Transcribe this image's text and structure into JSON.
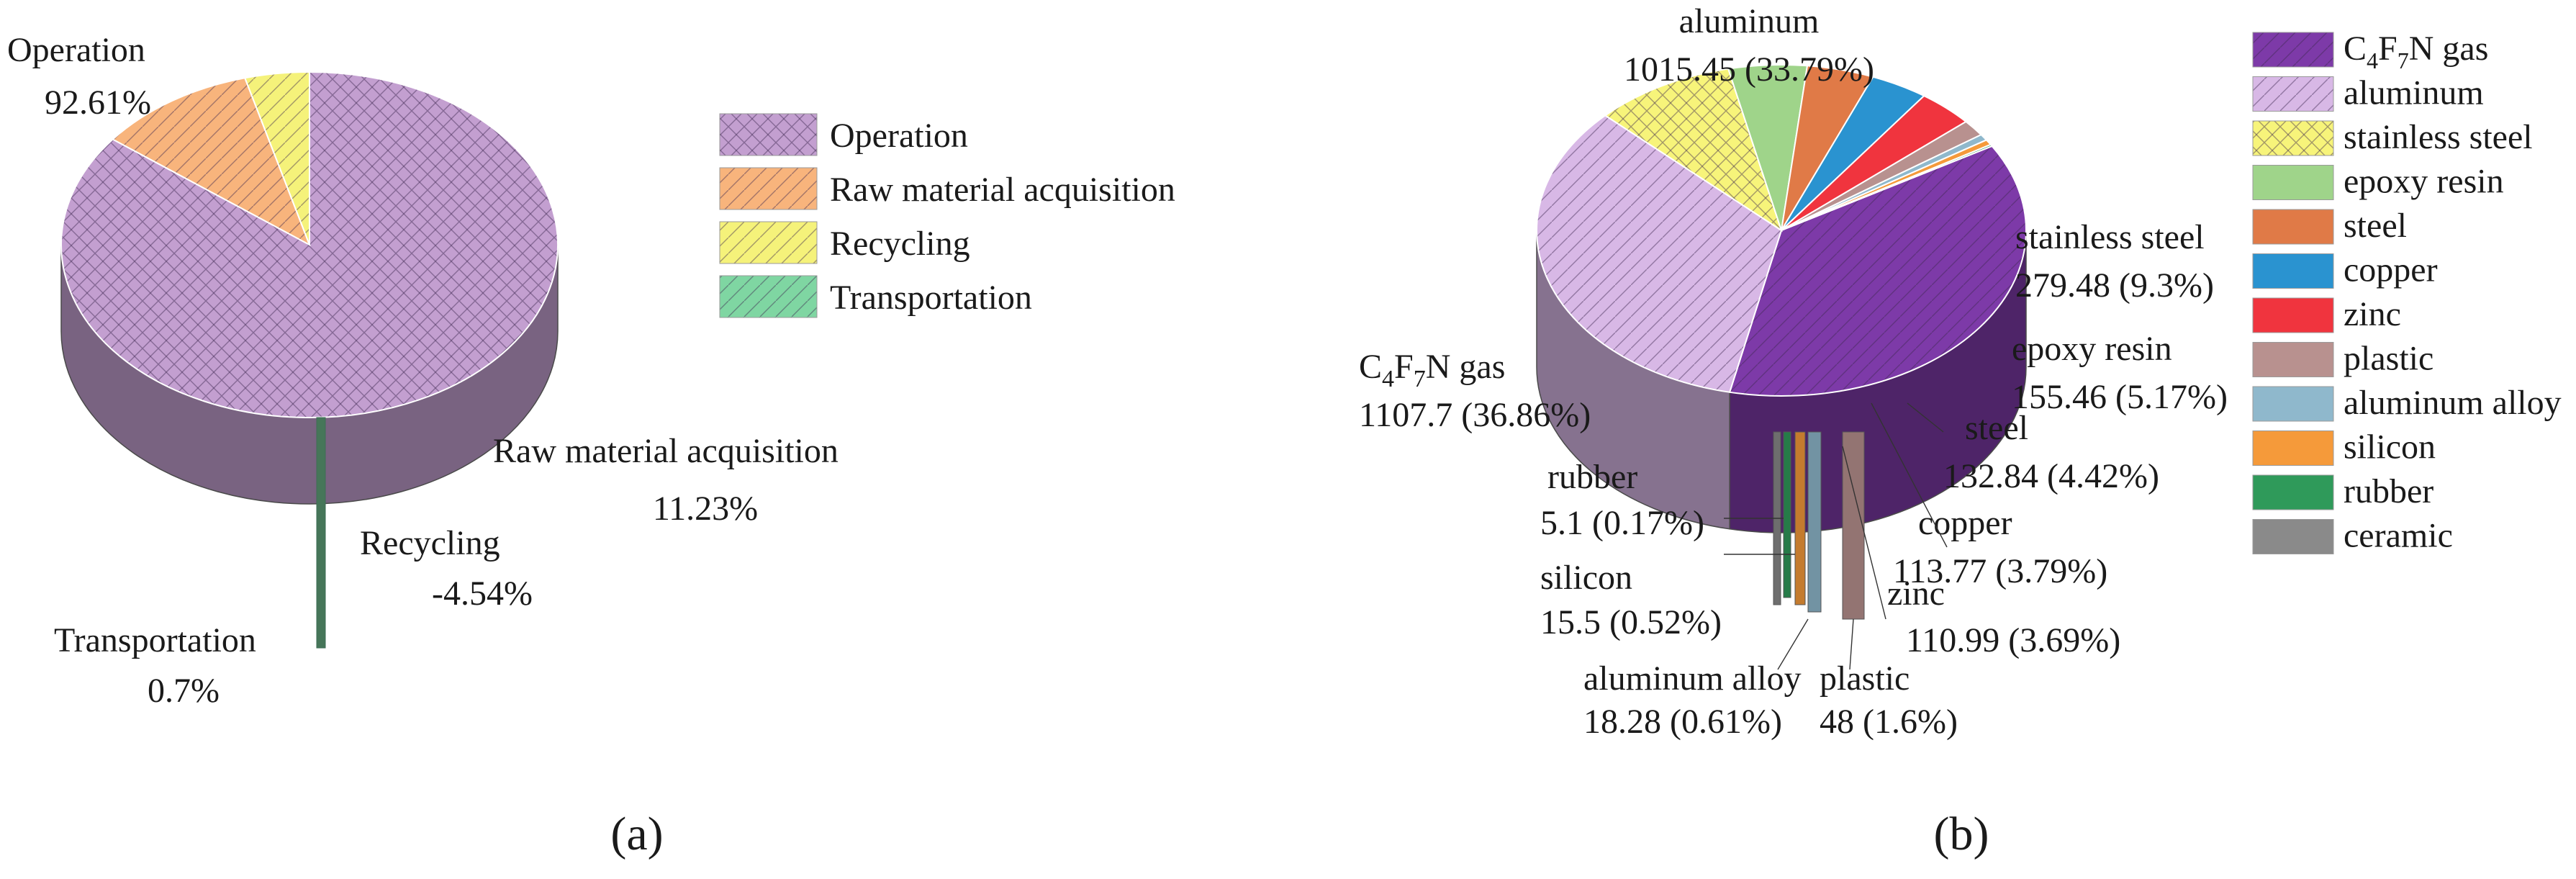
{
  "chart_data": [
    {
      "type": "pie",
      "panel_label": "(a)",
      "title": "",
      "legend_position": "right",
      "slices": [
        {
          "name": "Operation",
          "value": 92.61,
          "label_name": "Operation",
          "label_value": "92.61%",
          "color": "#c39fd0",
          "pattern": "crosshatch"
        },
        {
          "name": "Raw material acquisition",
          "value": 11.23,
          "label_name": "Raw material acquisition",
          "label_value": "11.23%",
          "color": "#f8b47c",
          "pattern": "diagonal"
        },
        {
          "name": "Recycling",
          "value": -4.54,
          "label_name": "Recycling",
          "label_value": "-4.54%",
          "color": "#f5f27a",
          "pattern": "diagonal"
        },
        {
          "name": "Transportation",
          "value": 0.7,
          "label_name": "Transportation",
          "label_value": "0.7%",
          "color": "#7fd6a2",
          "pattern": "diagonal"
        }
      ],
      "legend": [
        "Operation",
        "Raw material acquisition",
        "Recycling",
        "Transportation"
      ]
    },
    {
      "type": "pie",
      "panel_label": "(b)",
      "title": "",
      "legend_position": "right",
      "slices": [
        {
          "name": "C4F7N gas",
          "value": 1107.7,
          "percent": 36.86,
          "label_value": "1107.7 (36.86%)",
          "color": "#7d3aa8",
          "pattern": "diagonal"
        },
        {
          "name": "aluminum",
          "value": 1015.45,
          "percent": 33.79,
          "label_value": "1015.45 (33.79%)",
          "color": "#d8b8e6",
          "pattern": "diagonal"
        },
        {
          "name": "stainless steel",
          "value": 279.48,
          "percent": 9.3,
          "label_value": "279.48 (9.3%)",
          "color": "#f7f47a",
          "pattern": "crosshatch"
        },
        {
          "name": "epoxy resin",
          "value": 155.46,
          "percent": 5.17,
          "label_value": "155.46 (5.17%)",
          "color": "#9fd48a",
          "pattern": "none"
        },
        {
          "name": "steel",
          "value": 132.84,
          "percent": 4.42,
          "label_value": "132.84 (4.42%)",
          "color": "#e07a47",
          "pattern": "none"
        },
        {
          "name": "copper",
          "value": 113.77,
          "percent": 3.79,
          "label_value": "113.77 (3.79%)",
          "color": "#2a93d0",
          "pattern": "none"
        },
        {
          "name": "zinc",
          "value": 110.99,
          "percent": 3.69,
          "label_value": "110.99 (3.69%)",
          "color": "#f0343e",
          "pattern": "none"
        },
        {
          "name": "plastic",
          "value": 48,
          "percent": 1.6,
          "label_value": "48 (1.6%)",
          "color": "#b8918f",
          "pattern": "none"
        },
        {
          "name": "aluminum alloy",
          "value": 18.28,
          "percent": 0.61,
          "label_value": "18.28 (0.61%)",
          "color": "#8fb8cc",
          "pattern": "none"
        },
        {
          "name": "silicon",
          "value": 15.5,
          "percent": 0.52,
          "label_value": "15.5 (0.52%)",
          "color": "#f59a3a",
          "pattern": "none"
        },
        {
          "name": "rubber",
          "value": 5.1,
          "percent": 0.17,
          "label_value": "5.1 (0.17%)",
          "color": "#2f9a5a",
          "pattern": "none"
        },
        {
          "name": "ceramic",
          "value": null,
          "percent": null,
          "label_value": "",
          "color": "#8a8a8a",
          "pattern": "none"
        }
      ],
      "legend": [
        "C4F7N gas",
        "aluminum",
        "stainless steel",
        "epoxy resin",
        "steel",
        "copper",
        "zinc",
        "plastic",
        "aluminum alloy",
        "silicon",
        "rubber",
        "ceramic"
      ]
    }
  ]
}
